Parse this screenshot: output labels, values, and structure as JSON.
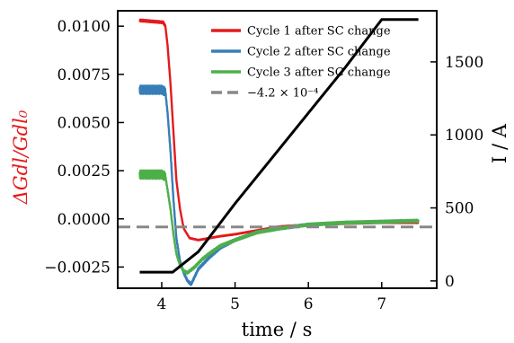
{
  "chart_data": {
    "type": "line",
    "xlabel": "time / s",
    "ylabel_left": "ΔGdl/Gdl₀",
    "ylabel_right": "I / A",
    "xlim": [
      3.4,
      7.75
    ],
    "ylim_left": [
      -0.0036,
      0.0108
    ],
    "ylim_right": [
      -50,
      1850
    ],
    "xticks": [
      4,
      5,
      6,
      7
    ],
    "xtick_labels": [
      "4",
      "5",
      "6",
      "7"
    ],
    "yticks_left": [
      -0.0025,
      0.0,
      0.0025,
      0.005,
      0.0075,
      0.01
    ],
    "ytick_labels_left": [
      "−0.0025",
      "0.0000",
      "0.0025",
      "0.0050",
      "0.0075",
      "0.0100"
    ],
    "yticks_right": [
      0,
      500,
      1000,
      1500
    ],
    "ytick_labels_right": [
      "0",
      "500",
      "1000",
      "1500"
    ],
    "grid": false,
    "legend_position": "top-right",
    "series": [
      {
        "name": "Cycle 1 after SC change",
        "axis": "left",
        "color": "#e41a1c",
        "noise": 5e-05,
        "x": [
          3.7,
          4.02,
          4.05,
          4.08,
          4.12,
          4.16,
          4.2,
          4.25,
          4.3,
          4.38,
          4.5,
          4.65,
          4.8,
          5.0,
          5.3,
          5.6,
          6.0,
          6.5,
          7.0,
          7.5
        ],
        "y": [
          0.0103,
          0.0102,
          0.01,
          0.009,
          0.007,
          0.0045,
          0.002,
          0.0005,
          -0.0005,
          -0.001,
          -0.0011,
          -0.001,
          -0.0009,
          -0.0008,
          -0.0006,
          -0.0004,
          -0.0003,
          -0.00025,
          -0.0002,
          -0.0002
        ]
      },
      {
        "name": "Cycle 2 after SC change",
        "axis": "left",
        "color": "#377eb8",
        "noise": 0.00022,
        "x": [
          3.7,
          4.0,
          4.05,
          4.08,
          4.12,
          4.16,
          4.2,
          4.25,
          4.3,
          4.35,
          4.4,
          4.45,
          4.5,
          4.65,
          4.8,
          5.0,
          5.3,
          5.6,
          6.0,
          6.5,
          7.0,
          7.5
        ],
        "y": [
          0.0067,
          0.0067,
          0.0066,
          0.0055,
          0.0035,
          0.001,
          -0.001,
          -0.0022,
          -0.0028,
          -0.0032,
          -0.0034,
          -0.003,
          -0.0026,
          -0.002,
          -0.0015,
          -0.0011,
          -0.0007,
          -0.0005,
          -0.0003,
          -0.0002,
          -0.00015,
          -0.0001
        ]
      },
      {
        "name": "Cycle 3 after SC change",
        "axis": "left",
        "color": "#4daf4a",
        "noise": 0.00022,
        "x": [
          3.7,
          4.0,
          4.05,
          4.08,
          4.12,
          4.16,
          4.2,
          4.25,
          4.3,
          4.35,
          4.45,
          4.55,
          4.65,
          4.8,
          5.0,
          5.3,
          5.6,
          6.0,
          6.5,
          7.0,
          7.5
        ],
        "y": [
          0.0023,
          0.0023,
          0.0022,
          0.0015,
          0.0005,
          -0.0008,
          -0.0018,
          -0.0024,
          -0.0027,
          -0.0028,
          -0.0025,
          -0.0021,
          -0.0018,
          -0.0014,
          -0.0011,
          -0.0007,
          -0.0005,
          -0.0003,
          -0.0002,
          -0.00015,
          -0.0001
        ]
      },
      {
        "name": "−4.2 × 10⁻⁴",
        "axis": "left",
        "color": "#888888",
        "dashed": true,
        "x": [
          3.4,
          7.75
        ],
        "y": [
          -0.00042,
          -0.00042
        ]
      },
      {
        "name": "",
        "axis": "right",
        "color": "#000000",
        "x": [
          3.7,
          4.15,
          4.2,
          4.5,
          5.0,
          5.5,
          6.0,
          6.5,
          7.0,
          7.5
        ],
        "y": [
          60,
          60,
          80,
          200,
          530,
          840,
          1150,
          1460,
          1790,
          1790
        ]
      }
    ]
  }
}
